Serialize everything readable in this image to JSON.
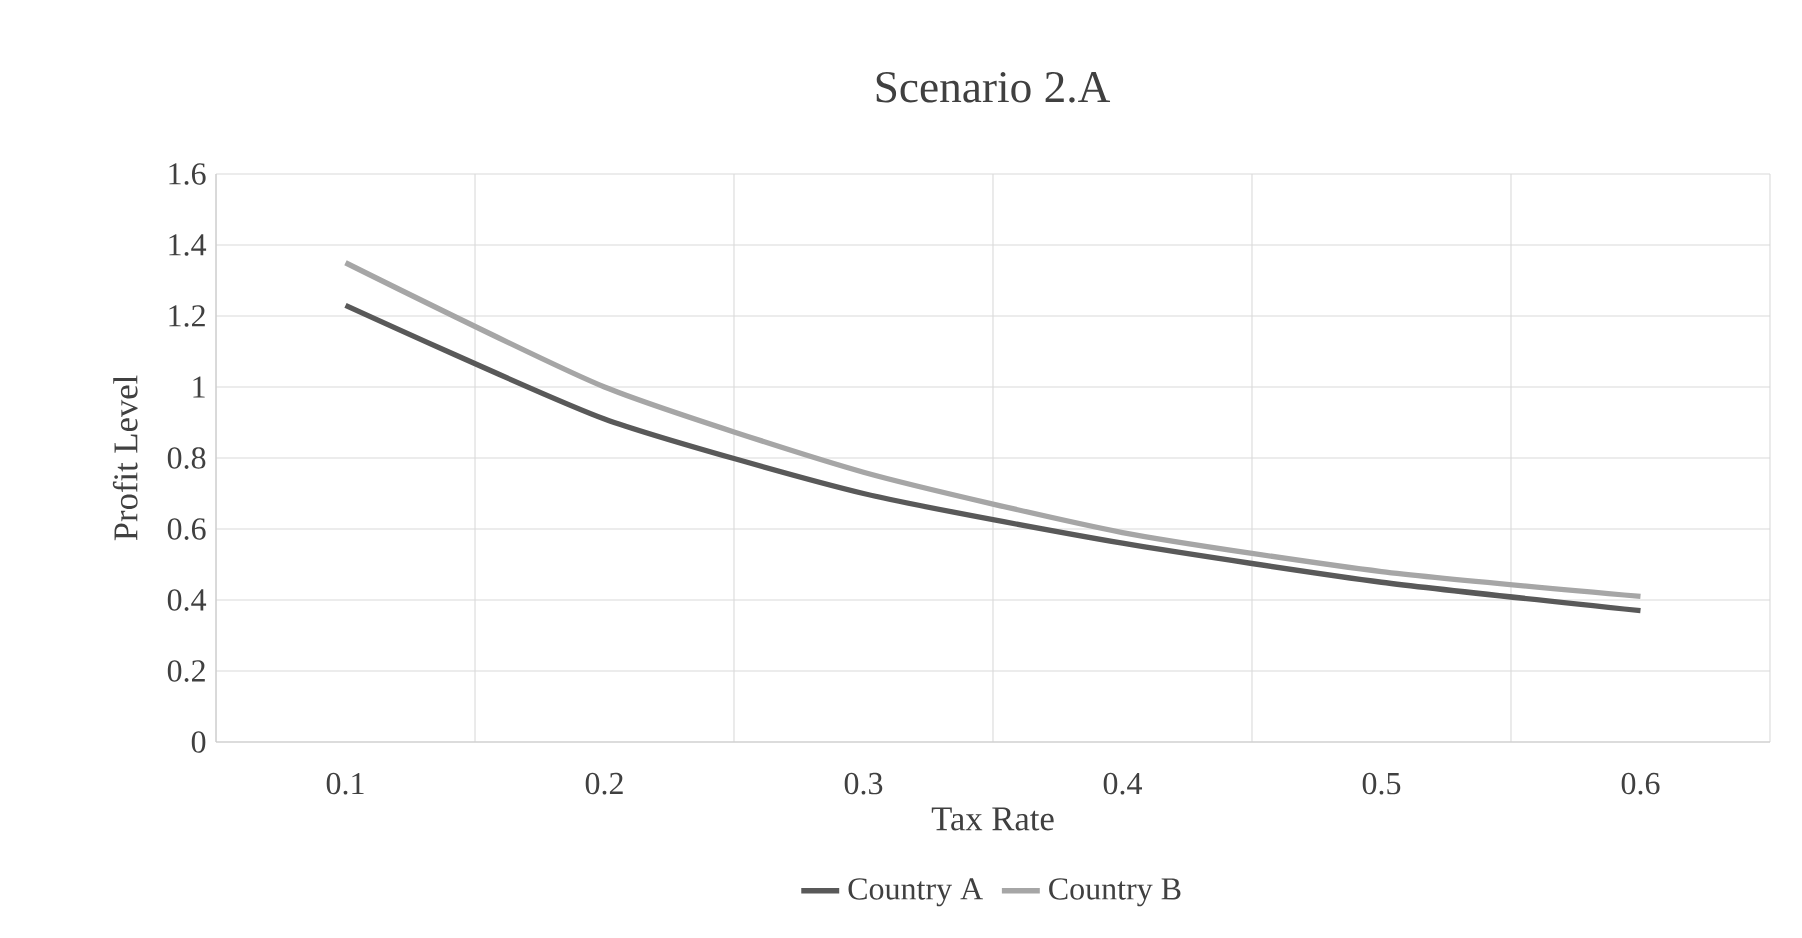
{
  "chart_data": {
    "type": "line",
    "title": "Scenario 2.A",
    "xlabel": "Tax Rate",
    "ylabel": "Profit Level",
    "categories": [
      "0.1",
      "0.2",
      "0.3",
      "0.4",
      "0.5",
      "0.6"
    ],
    "series": [
      {
        "name": "Country A",
        "color": "#595959",
        "values": [
          1.23,
          0.91,
          0.7,
          0.56,
          0.45,
          0.37
        ]
      },
      {
        "name": "Country B",
        "color": "#a6a6a6",
        "values": [
          1.35,
          1.0,
          0.76,
          0.59,
          0.48,
          0.41
        ]
      }
    ],
    "ylim": [
      0,
      1.6
    ],
    "yticks": [
      0,
      0.2,
      0.4,
      0.6,
      0.8,
      1,
      1.2,
      1.4,
      1.6
    ],
    "grid": true,
    "legend": "bottom",
    "marker": "none",
    "line_style": "solid"
  }
}
